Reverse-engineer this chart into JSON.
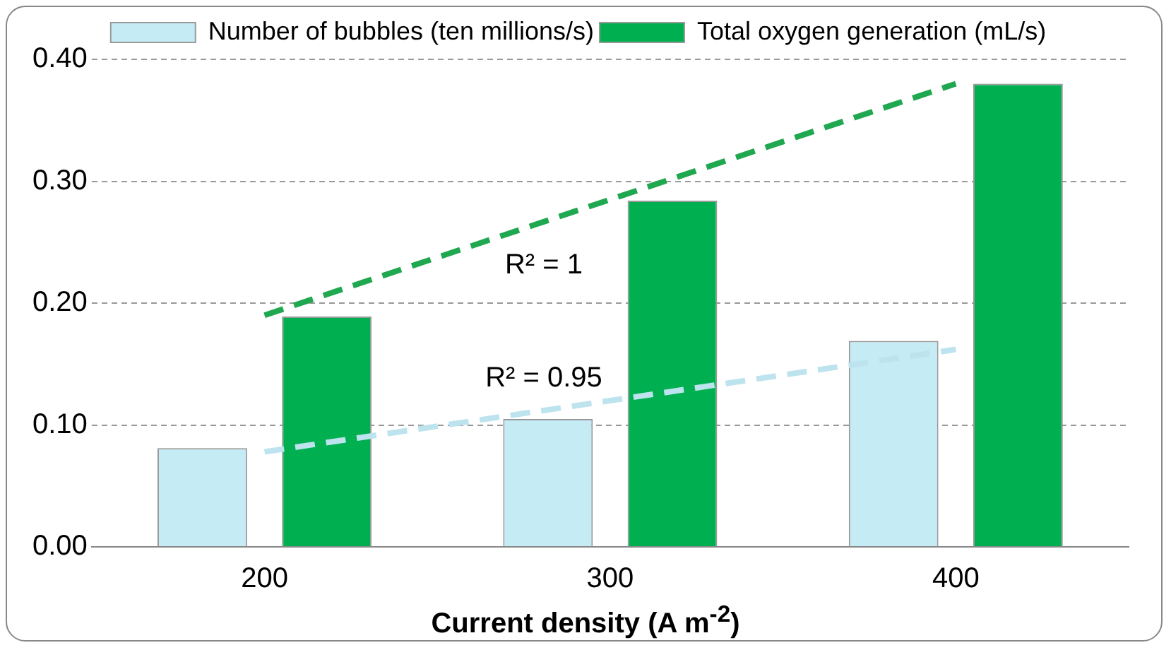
{
  "chart_data": {
    "type": "bar",
    "xlabel": "Current density (A m$^{-2}$)",
    "categories": [
      "200",
      "300",
      "400"
    ],
    "series": [
      {
        "name": "Number of bubbles (ten millions/s)",
        "color": "#c5ebf5",
        "values": [
          0.081,
          0.105,
          0.169
        ]
      },
      {
        "name": "Total oxygen generation (mL/s)",
        "color": "#00b050",
        "values": [
          0.189,
          0.284,
          0.38
        ]
      },
      {
        "type": "line",
        "color": "#bde3ee",
        "line_style": "dashed",
        "marker": "none",
        "values": [
          0.078,
          0.12,
          0.162
        ]
      },
      {
        "type": "line",
        "color": "#1fa84f",
        "line_style": "dashed",
        "marker": "none",
        "values": [
          0.19,
          0.285,
          0.38
        ]
      }
    ],
    "annotations": [
      "R² = 1",
      "R² = 0.95"
    ],
    "ylim": [
      0,
      0.4
    ],
    "yticks": [
      {
        "value": 0,
        "label": "0.00"
      },
      {
        "value": 0.1,
        "label": "0.10"
      },
      {
        "value": 0.2,
        "label": "0.20"
      },
      {
        "value": 0.3,
        "label": "0.30"
      },
      {
        "value": 0.4,
        "label": "0.40"
      }
    ],
    "grid": "y",
    "legend": "top"
  }
}
